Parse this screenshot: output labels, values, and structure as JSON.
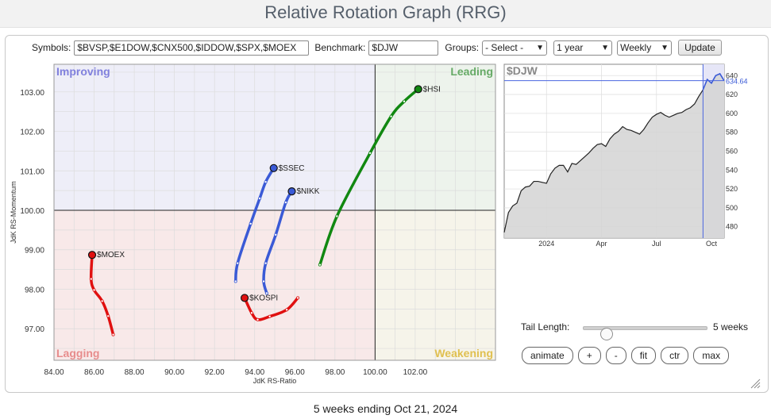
{
  "page_title": "Relative Rotation Graph (RRG)",
  "controls": {
    "symbols_label": "Symbols:",
    "symbols_value": "$BVSP,$E1DOW,$CNX500,$IDDOW,$SPX,$MOEX",
    "benchmark_label": "Benchmark:",
    "benchmark_value": "$DJW",
    "groups_label": "Groups:",
    "groups_value": "- Select -",
    "period_value": "1 year",
    "frequency_value": "Weekly",
    "update_label": "Update"
  },
  "tail": {
    "label": "Tail Length:",
    "value_label": "5 weeks",
    "value_weeks": 5,
    "slider_position": 0.15
  },
  "buttons": {
    "animate": "animate",
    "plus": "+",
    "minus": "-",
    "fit": "fit",
    "ctr": "ctr",
    "max": "max"
  },
  "footer": "5 weeks ending Oct 21, 2024",
  "colors": {
    "improving": "#eeeef8",
    "leading": "#edf3ec",
    "lagging": "#f8e9e9",
    "weakening": "#f6f4ea",
    "improving_text": "#8080dd",
    "leading_text": "#66aa66",
    "lagging_text": "#e78c8c",
    "weakening_text": "#e0c050",
    "green": "#118811",
    "blue": "#3a5ad6",
    "red": "#e01010"
  },
  "chart_data": [
    {
      "type": "scatter",
      "title": "",
      "xlabel": "JdK RS-Ratio",
      "ylabel": "JdK RS-Momentum",
      "xlim": [
        84,
        106
      ],
      "ylim": [
        96.2,
        103.7
      ],
      "x_ticks": [
        "84.00",
        "86.00",
        "88.00",
        "90.00",
        "92.00",
        "94.00",
        "96.00",
        "98.00",
        "100.00",
        "102.00"
      ],
      "y_ticks": [
        "97.00",
        "98.00",
        "99.00",
        "100.00",
        "101.00",
        "102.00",
        "103.00"
      ],
      "quadrants": {
        "improving": "Improving",
        "leading": "Leading",
        "lagging": "Lagging",
        "weakening": "Weakening"
      },
      "series": [
        {
          "name": "$HSI",
          "color": "#118811",
          "x": [
            97.25,
            98.1,
            99.75,
            100.8,
            101.45,
            102.15
          ],
          "y": [
            98.62,
            99.85,
            101.45,
            102.38,
            102.76,
            103.07
          ]
        },
        {
          "name": "$SSEC",
          "color": "#3a5ad6",
          "x": [
            93.05,
            93.15,
            93.8,
            94.25,
            94.55,
            94.95
          ],
          "y": [
            98.2,
            98.66,
            99.66,
            100.3,
            100.72,
            101.07
          ]
        },
        {
          "name": "$NIKK",
          "color": "#3a5ad6",
          "x": [
            94.6,
            94.45,
            94.55,
            95.05,
            95.55,
            95.85
          ],
          "y": [
            97.9,
            98.2,
            98.66,
            99.38,
            100.2,
            100.48
          ]
        },
        {
          "name": "$MOEX",
          "color": "#e01010",
          "x": [
            86.95,
            86.7,
            86.4,
            86.0,
            85.85,
            85.9
          ],
          "y": [
            96.85,
            97.32,
            97.7,
            97.98,
            98.26,
            98.87
          ]
        },
        {
          "name": "$KOSPI",
          "color": "#e01010",
          "x": [
            96.15,
            95.6,
            94.75,
            94.15,
            93.85,
            93.5
          ],
          "y": [
            97.78,
            97.48,
            97.31,
            97.23,
            97.4,
            97.78
          ]
        }
      ]
    },
    {
      "type": "area",
      "title": "$DJW",
      "xlabel": "",
      "ylabel": "",
      "x_ticks": [
        "2024",
        "Apr",
        "Jul",
        "Oct"
      ],
      "y_ticks": [
        "480",
        "500",
        "520",
        "540",
        "560",
        "580",
        "600",
        "620",
        "640"
      ],
      "ylim": [
        468,
        652
      ],
      "last_value_label": "634.64",
      "last_value": 634.64,
      "x": [
        "2023-10-23",
        "2023-10-30",
        "2023-11-06",
        "2023-11-13",
        "2023-11-20",
        "2023-11-27",
        "2023-12-04",
        "2023-12-11",
        "2023-12-18",
        "2023-12-25",
        "2024-01-01",
        "2024-01-08",
        "2024-01-15",
        "2024-01-22",
        "2024-01-29",
        "2024-02-05",
        "2024-02-12",
        "2024-02-19",
        "2024-02-26",
        "2024-03-04",
        "2024-03-11",
        "2024-03-18",
        "2024-03-25",
        "2024-04-01",
        "2024-04-08",
        "2024-04-15",
        "2024-04-22",
        "2024-04-29",
        "2024-05-06",
        "2024-05-13",
        "2024-05-20",
        "2024-05-27",
        "2024-06-03",
        "2024-06-10",
        "2024-06-17",
        "2024-06-24",
        "2024-07-01",
        "2024-07-08",
        "2024-07-15",
        "2024-07-22",
        "2024-07-29",
        "2024-08-05",
        "2024-08-12",
        "2024-08-19",
        "2024-08-26",
        "2024-09-02",
        "2024-09-09",
        "2024-09-16",
        "2024-09-23",
        "2024-09-30",
        "2024-10-07",
        "2024-10-14",
        "2024-10-21"
      ],
      "values": [
        474,
        495,
        502,
        505,
        518,
        522,
        523,
        528,
        528,
        527,
        526,
        536,
        542,
        545,
        545,
        538,
        547,
        546,
        550,
        554,
        558,
        563,
        567,
        568,
        565,
        573,
        578,
        581,
        586,
        583,
        582,
        580,
        578,
        583,
        590,
        596,
        599,
        601,
        598,
        596,
        598,
        600,
        601,
        604,
        606,
        610,
        618,
        625,
        636,
        632,
        640,
        642,
        634.64
      ]
    }
  ]
}
